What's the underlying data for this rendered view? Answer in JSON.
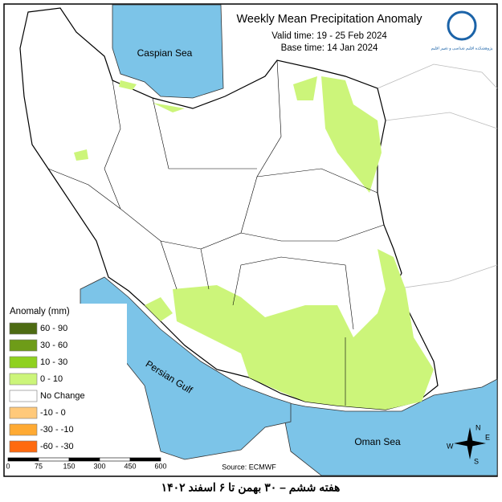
{
  "header": {
    "title": "Weekly Mean Precipitation Anomaly",
    "valid_time": "Valid time:  19 - 25 Feb 2024",
    "base_time": "Base time:  14 Jan 2024",
    "logo_text": "پژوهشکده اقلیم شناسی و تغییر اقلیم"
  },
  "seas": {
    "caspian": "Caspian Sea",
    "gulf": "Persian Gulf",
    "oman": "Oman Sea"
  },
  "legend": {
    "title": "Anomaly (mm)",
    "items": [
      {
        "label": "60 - 90",
        "color": "#4d6b12"
      },
      {
        "label": "30 - 60",
        "color": "#6e9c18"
      },
      {
        "label": "10 - 30",
        "color": "#8fd11f"
      },
      {
        "label": "0 - 10",
        "color": "#ccf57a"
      },
      {
        "label": "No Change",
        "color": "#ffffff"
      },
      {
        "label": "-10 - 0",
        "color": "#ffc97a"
      },
      {
        "label": "-30 - -10",
        "color": "#ffaa33"
      },
      {
        "label": "-60 - -30",
        "color": "#ff6a10"
      }
    ]
  },
  "scale": {
    "labels": [
      "0",
      "75",
      "150",
      "300",
      "450",
      "600"
    ]
  },
  "compass": {
    "n": "N",
    "e": "E",
    "s": "S",
    "w": "W"
  },
  "source": "Source: ECMWF",
  "caption": "هفته ششم – ۳۰ بهمن تا ۶ اسفند ۱۴۰۲"
}
